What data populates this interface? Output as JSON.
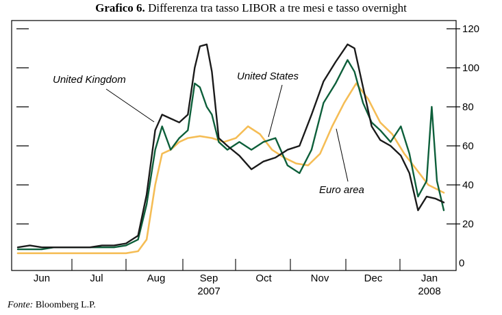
{
  "title_bold": "Grafico 6.",
  "title_rest": "Differenza tra tasso LIBOR a tre mesi e tasso overnight",
  "source_label": "Fonte:",
  "source_value": "Bloomberg L.P.",
  "colors": {
    "uk": "#1a1a1a",
    "us": "#0d5f3a",
    "euro": "#f5bd55",
    "frame": "#000000"
  },
  "chart_data": {
    "type": "line",
    "title": "Differenza tra tasso LIBOR a tre mesi e tasso overnight",
    "xlabel": "",
    "ylabel": "",
    "x_categories": [
      "Jun",
      "Jul",
      "Aug",
      "Sep",
      "Oct",
      "Nov",
      "Dec",
      "Jan"
    ],
    "year_labels": [
      {
        "month": "Sep",
        "year": "2007"
      },
      {
        "month": "Jan",
        "year": "2008"
      }
    ],
    "x_range": [
      "2007-05-25",
      "2008-01-28"
    ],
    "ylim": [
      0,
      120
    ],
    "y_ticks": [
      0,
      20,
      40,
      60,
      80,
      100,
      120
    ],
    "y_axis_side": "right",
    "grid": false,
    "annotations": [
      {
        "text": "United Kingdom",
        "series": "United Kingdom"
      },
      {
        "text": "United States",
        "series": "United States"
      },
      {
        "text": "Euro area",
        "series": "Euro area"
      }
    ],
    "series": [
      {
        "name": "United Kingdom",
        "color": "#1a1a1a",
        "x": [
          "2007-05-25",
          "2007-06-01",
          "2007-06-08",
          "2007-06-15",
          "2007-06-22",
          "2007-06-29",
          "2007-07-06",
          "2007-07-13",
          "2007-07-20",
          "2007-07-27",
          "2007-08-03",
          "2007-08-08",
          "2007-08-13",
          "2007-08-17",
          "2007-08-22",
          "2007-08-27",
          "2007-09-01",
          "2007-09-05",
          "2007-09-08",
          "2007-09-12",
          "2007-09-15",
          "2007-09-19",
          "2007-09-24",
          "2007-10-01",
          "2007-10-08",
          "2007-10-15",
          "2007-10-22",
          "2007-10-29",
          "2007-11-05",
          "2007-11-12",
          "2007-11-19",
          "2007-11-26",
          "2007-12-03",
          "2007-12-07",
          "2007-12-12",
          "2007-12-17",
          "2007-12-22",
          "2007-12-28",
          "2008-01-03",
          "2008-01-08",
          "2008-01-13",
          "2008-01-18",
          "2008-01-23",
          "2008-01-28"
        ],
        "y": [
          8,
          9,
          8,
          8,
          8,
          8,
          8,
          9,
          9,
          10,
          14,
          35,
          68,
          76,
          74,
          72,
          76,
          100,
          111,
          112,
          98,
          64,
          60,
          55,
          48,
          52,
          54,
          58,
          60,
          76,
          93,
          103,
          112,
          110,
          90,
          70,
          63,
          60,
          55,
          46,
          27,
          34,
          33,
          31
        ]
      },
      {
        "name": "United States",
        "color": "#0d5f3a",
        "x": [
          "2007-05-25",
          "2007-06-01",
          "2007-06-08",
          "2007-06-15",
          "2007-06-22",
          "2007-06-29",
          "2007-07-06",
          "2007-07-13",
          "2007-07-20",
          "2007-07-27",
          "2007-08-03",
          "2007-08-08",
          "2007-08-13",
          "2007-08-17",
          "2007-08-22",
          "2007-08-27",
          "2007-09-01",
          "2007-09-05",
          "2007-09-08",
          "2007-09-12",
          "2007-09-15",
          "2007-09-19",
          "2007-09-24",
          "2007-10-01",
          "2007-10-08",
          "2007-10-15",
          "2007-10-22",
          "2007-10-29",
          "2007-11-05",
          "2007-11-12",
          "2007-11-19",
          "2007-11-26",
          "2007-12-03",
          "2007-12-07",
          "2007-12-12",
          "2007-12-17",
          "2007-12-22",
          "2007-12-28",
          "2008-01-03",
          "2008-01-08",
          "2008-01-13",
          "2008-01-18",
          "2008-01-21",
          "2008-01-24",
          "2008-01-28"
        ],
        "y": [
          7,
          7,
          7,
          8,
          8,
          8,
          8,
          8,
          8,
          9,
          12,
          30,
          58,
          70,
          58,
          64,
          68,
          92,
          90,
          80,
          76,
          62,
          58,
          62,
          58,
          62,
          64,
          50,
          46,
          58,
          82,
          92,
          104,
          98,
          82,
          72,
          68,
          62,
          70,
          56,
          34,
          42,
          80,
          42,
          27
        ]
      },
      {
        "name": "Euro area",
        "color": "#f5bd55",
        "x": [
          "2007-05-25",
          "2007-06-01",
          "2007-06-08",
          "2007-06-15",
          "2007-06-22",
          "2007-06-29",
          "2007-07-06",
          "2007-07-13",
          "2007-07-20",
          "2007-07-27",
          "2007-08-03",
          "2007-08-08",
          "2007-08-13",
          "2007-08-17",
          "2007-08-22",
          "2007-08-27",
          "2007-09-01",
          "2007-09-08",
          "2007-09-15",
          "2007-09-22",
          "2007-09-29",
          "2007-10-06",
          "2007-10-13",
          "2007-10-20",
          "2007-10-27",
          "2007-11-03",
          "2007-11-10",
          "2007-11-17",
          "2007-11-24",
          "2007-12-01",
          "2007-12-08",
          "2007-12-15",
          "2007-12-22",
          "2007-12-29",
          "2008-01-05",
          "2008-01-12",
          "2008-01-19",
          "2008-01-28"
        ],
        "y": [
          5,
          5,
          5,
          5,
          5,
          5,
          5,
          5,
          5,
          5,
          6,
          12,
          40,
          56,
          58,
          62,
          64,
          65,
          64,
          62,
          64,
          70,
          66,
          58,
          54,
          51,
          50,
          56,
          70,
          82,
          92,
          84,
          72,
          66,
          56,
          48,
          40,
          36
        ]
      }
    ]
  }
}
